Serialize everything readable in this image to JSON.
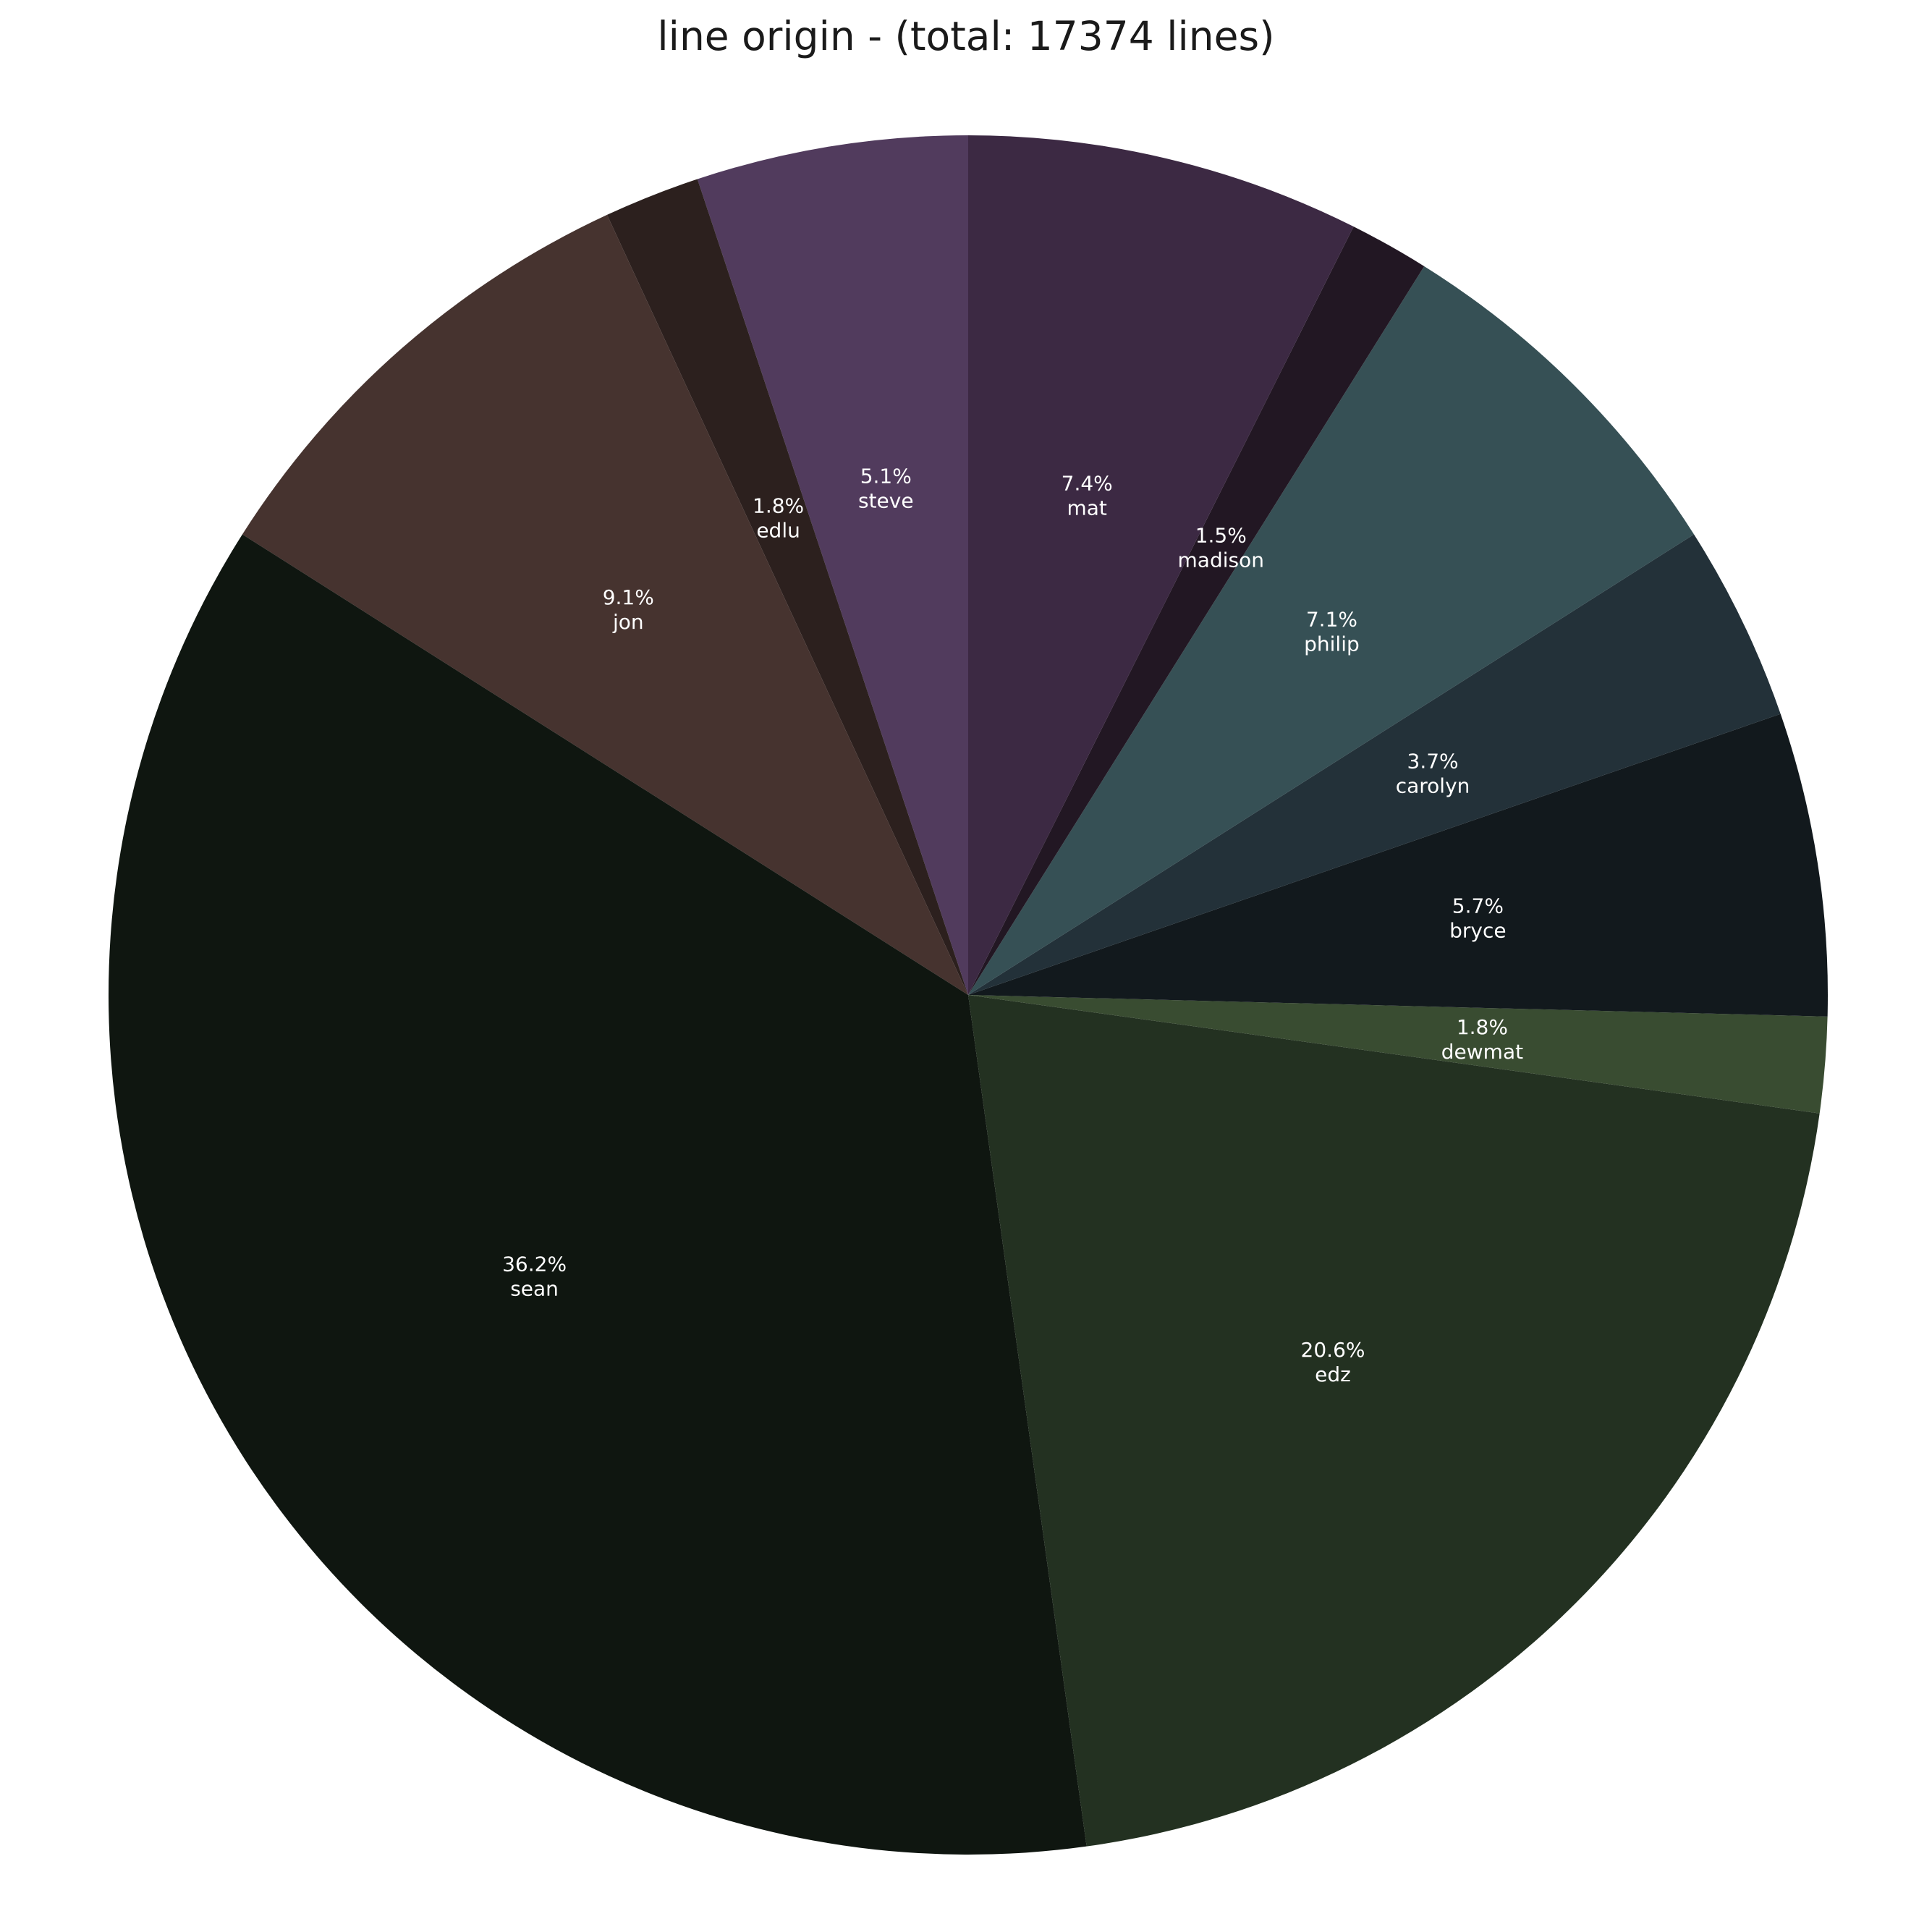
{
  "chart_data": {
    "type": "pie",
    "title": "line origin - (total: 17374 lines)",
    "start_angle_deg": 90,
    "direction": "counterclockwise",
    "slices": [
      {
        "label": "steve",
        "percent": 5.1,
        "percent_text": "5.1%",
        "color": "#513b5d"
      },
      {
        "label": "edlu",
        "percent": 1.8,
        "percent_text": "1.8%",
        "color": "#2c201e"
      },
      {
        "label": "jon",
        "percent": 9.1,
        "percent_text": "9.1%",
        "color": "#46332f"
      },
      {
        "label": "sean",
        "percent": 36.2,
        "percent_text": "36.2%",
        "color": "#0f1610"
      },
      {
        "label": "edz",
        "percent": 20.6,
        "percent_text": "20.6%",
        "color": "#233121"
      },
      {
        "label": "dewmat",
        "percent": 1.8,
        "percent_text": "1.8%",
        "color": "#394c31"
      },
      {
        "label": "bryce",
        "percent": 5.7,
        "percent_text": "5.7%",
        "color": "#12191d"
      },
      {
        "label": "carolyn",
        "percent": 3.7,
        "percent_text": "3.7%",
        "color": "#233139"
      },
      {
        "label": "philip",
        "percent": 7.1,
        "percent_text": "7.1%",
        "color": "#365055"
      },
      {
        "label": "madison",
        "percent": 1.5,
        "percent_text": "1.5%",
        "color": "#221723"
      },
      {
        "label": "mat",
        "percent": 7.4,
        "percent_text": "7.4%",
        "color": "#3c2943"
      }
    ]
  }
}
